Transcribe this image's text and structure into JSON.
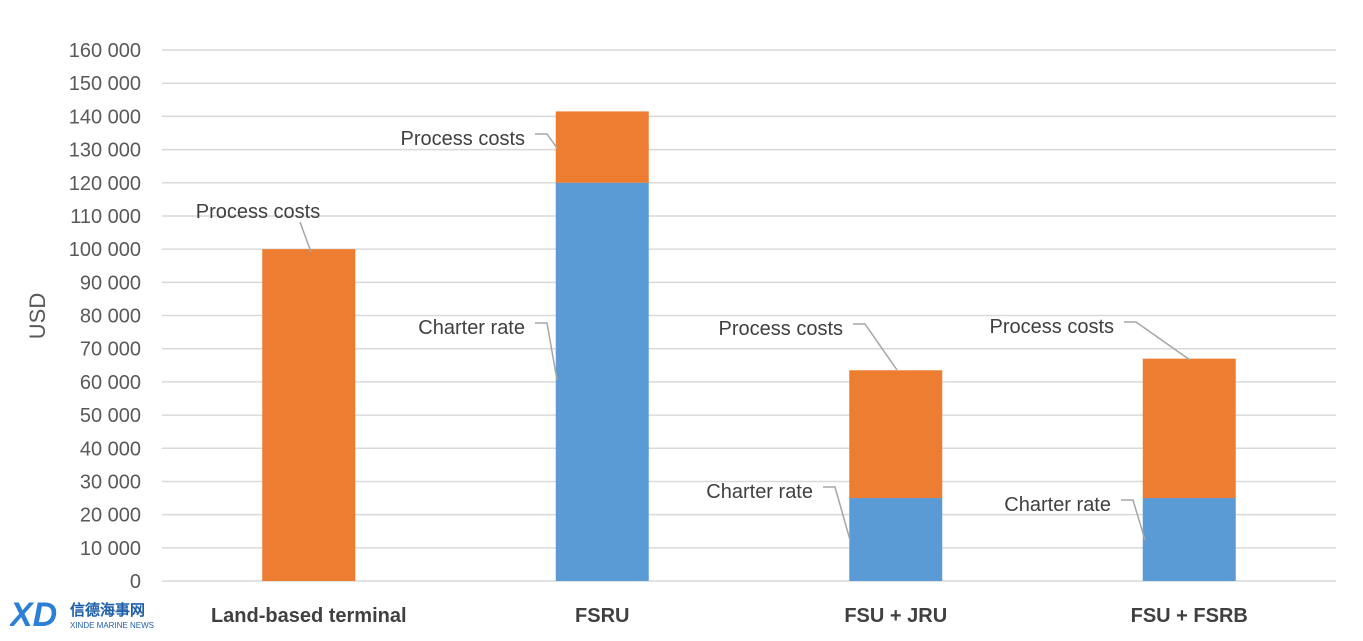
{
  "chart_data": {
    "type": "bar",
    "stacked": true,
    "categories": [
      "Land-based terminal",
      "FSRU",
      "FSU + JRU",
      "FSU + FSRB"
    ],
    "series": [
      {
        "key": "charter",
        "values": [
          0,
          120000,
          25000,
          25000
        ],
        "color": "#5b9bd5"
      },
      {
        "key": "process",
        "values": [
          100000,
          21500,
          38500,
          42000
        ],
        "color": "#ed7d31"
      }
    ],
    "ylabel": "USD",
    "ylim": [
      0,
      160000
    ],
    "yticks": [
      0,
      10000,
      20000,
      30000,
      40000,
      50000,
      60000,
      70000,
      80000,
      90000,
      100000,
      110000,
      120000,
      130000,
      140000,
      150000,
      160000
    ],
    "ytick_labels": [
      "0",
      "10 000",
      "20 000",
      "30 000",
      "40 000",
      "50 000",
      "60 000",
      "70 000",
      "80 000",
      "90 000",
      "100 000",
      "110 000",
      "120 000",
      "130 000",
      "140 000",
      "150 000",
      "160 000"
    ],
    "grid": true,
    "annotations": [
      {
        "text": "Process costs",
        "category": 0,
        "series": "process"
      },
      {
        "text": "Process costs",
        "category": 1,
        "series": "process"
      },
      {
        "text": "Charter rate",
        "category": 1,
        "series": "charter"
      },
      {
        "text": "Process costs",
        "category": 2,
        "series": "process"
      },
      {
        "text": "Charter rate",
        "category": 2,
        "series": "charter"
      },
      {
        "text": "Process costs",
        "category": 3,
        "series": "process"
      },
      {
        "text": "Charter rate",
        "category": 3,
        "series": "charter"
      }
    ]
  },
  "watermark": {
    "logo_text": "XD",
    "chinese_text": "信德海事网",
    "english_text": "XINDE MARINE NEWS",
    "logo_color": "#2b7fd4"
  }
}
